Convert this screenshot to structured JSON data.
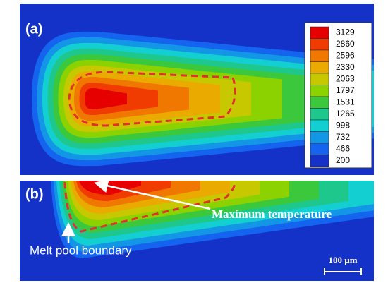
{
  "panels": [
    {
      "label": "(a)"
    },
    {
      "label": "(b)"
    }
  ],
  "colorbar": {
    "levels": [
      3129,
      2860,
      2596,
      2330,
      2063,
      1797,
      1531,
      1265,
      998,
      732,
      466,
      200
    ],
    "colors": [
      "#e60000",
      "#f03c00",
      "#f07800",
      "#eaaa00",
      "#c8c800",
      "#8cd200",
      "#3cc83c",
      "#1ec88c",
      "#14cfd2",
      "#1496e6",
      "#1464f0",
      "#1432c8"
    ]
  },
  "annotations": {
    "maximum": "Maximum temperature",
    "boundary": "Melt pool boundary",
    "scale": "100 µm"
  }
}
